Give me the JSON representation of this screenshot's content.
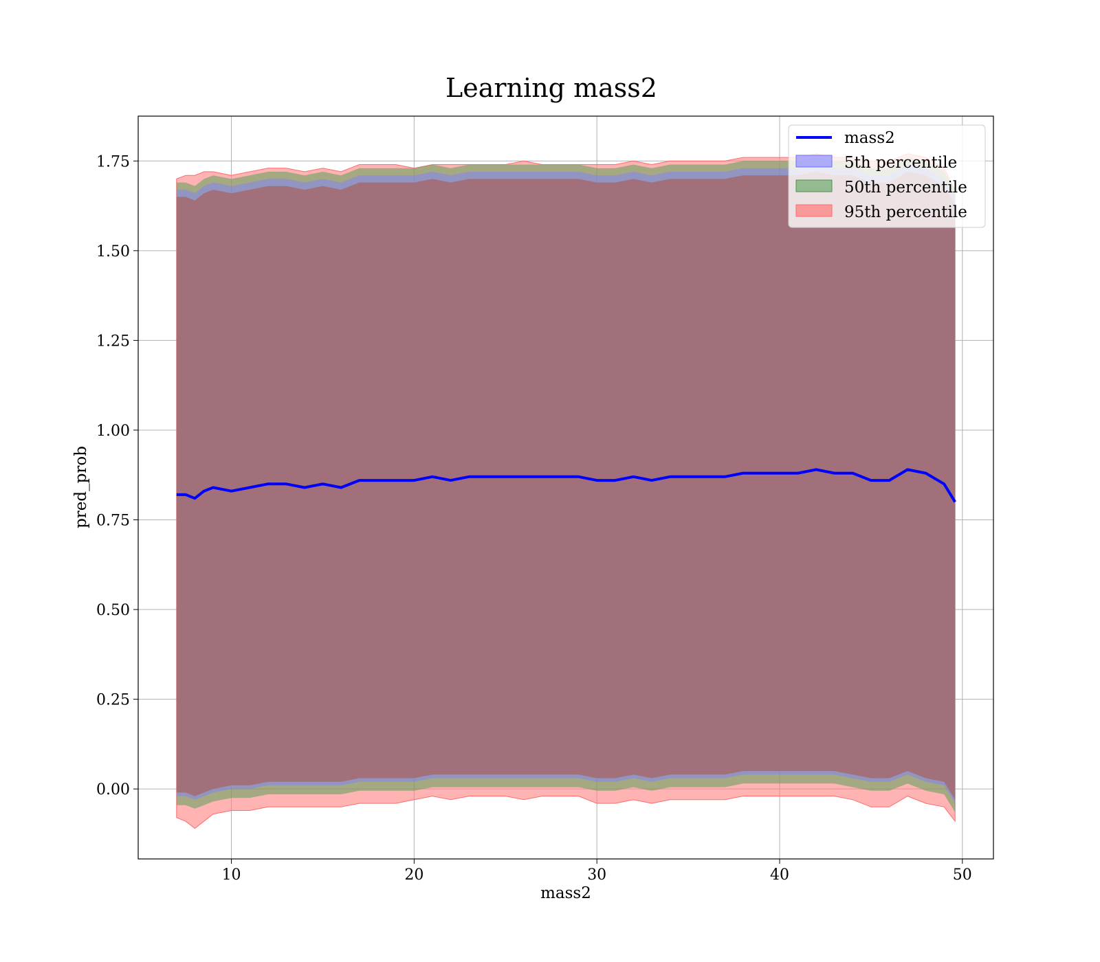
{
  "chart_data": {
    "type": "line",
    "title": "Learning mass2",
    "xlabel": "mass2",
    "ylabel": "pred_prob",
    "xlim": [
      4.9,
      51.7
    ],
    "ylim": [
      -0.195,
      1.875
    ],
    "xticks": [
      10,
      20,
      30,
      40,
      50
    ],
    "xtick_labels": [
      "10",
      "20",
      "30",
      "40",
      "50"
    ],
    "yticks": [
      0.0,
      0.25,
      0.5,
      0.75,
      1.0,
      1.25,
      1.5,
      1.75
    ],
    "ytick_labels": [
      "0.00",
      "0.25",
      "0.50",
      "0.75",
      "1.00",
      "1.25",
      "1.50",
      "1.75"
    ],
    "grid": true,
    "legend_position": "top-right",
    "legend": [
      "mass2",
      "5th percentile",
      "50th percentile",
      "95th percentile"
    ],
    "colors": {
      "line": "#0000ff",
      "band_5th": "#8080ff",
      "band_50th": "#5aa05a",
      "band_95th": "#ff8080",
      "overlap": "#a1707a"
    },
    "x": [
      7.0,
      7.5,
      8.0,
      8.5,
      9.0,
      10.0,
      11.0,
      12.0,
      13.0,
      14.0,
      15.0,
      16.0,
      17.0,
      18.0,
      19.0,
      20.0,
      21.0,
      22.0,
      23.0,
      24.0,
      25.0,
      26.0,
      27.0,
      28.0,
      29.0,
      30.0,
      31.0,
      32.0,
      33.0,
      34.0,
      35.0,
      36.0,
      37.0,
      38.0,
      39.0,
      40.0,
      41.0,
      42.0,
      43.0,
      44.0,
      45.0,
      46.0,
      47.0,
      48.0,
      49.0,
      49.6
    ],
    "series": [
      {
        "name": "mass2",
        "values": [
          0.82,
          0.82,
          0.81,
          0.83,
          0.84,
          0.83,
          0.84,
          0.85,
          0.85,
          0.84,
          0.85,
          0.84,
          0.86,
          0.86,
          0.86,
          0.86,
          0.87,
          0.86,
          0.87,
          0.87,
          0.87,
          0.87,
          0.87,
          0.87,
          0.87,
          0.86,
          0.86,
          0.87,
          0.86,
          0.87,
          0.87,
          0.87,
          0.87,
          0.88,
          0.88,
          0.88,
          0.88,
          0.89,
          0.88,
          0.88,
          0.86,
          0.86,
          0.89,
          0.88,
          0.85,
          0.8
        ]
      },
      {
        "name": "5th percentile",
        "values": [
          -0.04,
          -0.04,
          -0.05,
          -0.04,
          -0.03,
          -0.02,
          -0.02,
          -0.01,
          -0.01,
          -0.01,
          -0.01,
          -0.01,
          0.0,
          0.0,
          0.0,
          0.0,
          0.01,
          0.01,
          0.01,
          0.01,
          0.01,
          0.01,
          0.01,
          0.01,
          0.01,
          0.0,
          0.0,
          0.01,
          0.0,
          0.01,
          0.01,
          0.01,
          0.01,
          0.02,
          0.02,
          0.02,
          0.02,
          0.02,
          0.02,
          0.01,
          0.0,
          0.0,
          0.02,
          0.0,
          -0.01,
          -0.06
        ]
      },
      {
        "name": "50th percentile",
        "values": [
          1.67,
          1.67,
          1.66,
          1.68,
          1.69,
          1.68,
          1.69,
          1.7,
          1.7,
          1.69,
          1.7,
          1.69,
          1.71,
          1.71,
          1.71,
          1.71,
          1.72,
          1.71,
          1.72,
          1.72,
          1.72,
          1.72,
          1.72,
          1.72,
          1.72,
          1.71,
          1.71,
          1.72,
          1.71,
          1.72,
          1.72,
          1.72,
          1.72,
          1.73,
          1.73,
          1.73,
          1.73,
          1.74,
          1.73,
          1.73,
          1.71,
          1.71,
          1.74,
          1.73,
          1.7,
          1.65
        ]
      },
      {
        "name": "95th percentile",
        "values": [
          1.7,
          1.71,
          1.71,
          1.72,
          1.72,
          1.71,
          1.72,
          1.73,
          1.73,
          1.72,
          1.73,
          1.72,
          1.74,
          1.74,
          1.74,
          1.73,
          1.74,
          1.74,
          1.74,
          1.74,
          1.74,
          1.75,
          1.74,
          1.74,
          1.74,
          1.74,
          1.74,
          1.75,
          1.74,
          1.75,
          1.75,
          1.75,
          1.75,
          1.76,
          1.76,
          1.76,
          1.76,
          1.77,
          1.76,
          1.76,
          1.75,
          1.75,
          1.77,
          1.76,
          1.73,
          1.67
        ]
      }
    ]
  }
}
